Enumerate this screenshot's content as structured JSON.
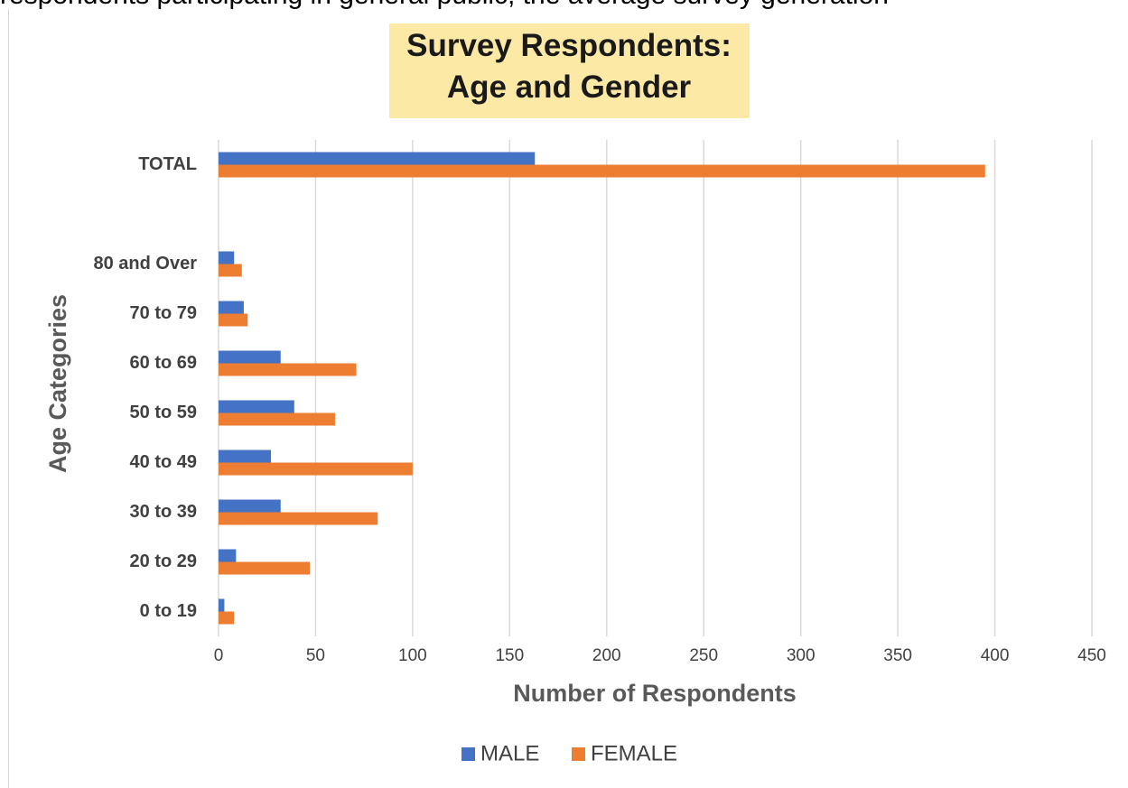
{
  "page": {
    "top_text": "respondents participating in general public, the average survey generation"
  },
  "chart_data": {
    "type": "bar",
    "orientation": "horizontal",
    "title": [
      "Survey Respondents:",
      "Age and Gender"
    ],
    "xlabel": "Number of Respondents",
    "ylabel": "Age Categories",
    "xlim": [
      0,
      450
    ],
    "xticks": [
      0,
      50,
      100,
      150,
      200,
      250,
      300,
      350,
      400,
      450
    ],
    "categories": [
      "TOTAL",
      "",
      "80 and Over",
      "70 to 79",
      "60 to 69",
      "50 to 59",
      "40 to 49",
      "30 to 39",
      "20 to 29",
      "0 to 19"
    ],
    "series": [
      {
        "name": "MALE",
        "color": "#4472c4",
        "values": [
          163,
          null,
          8,
          13,
          32,
          39,
          27,
          32,
          9,
          3
        ]
      },
      {
        "name": "FEMALE",
        "color": "#ed7d31",
        "values": [
          395,
          null,
          12,
          15,
          71,
          60,
          100,
          82,
          47,
          8
        ]
      }
    ],
    "grid": true,
    "legend_position": "bottom",
    "title_background": "#fde9a6"
  }
}
